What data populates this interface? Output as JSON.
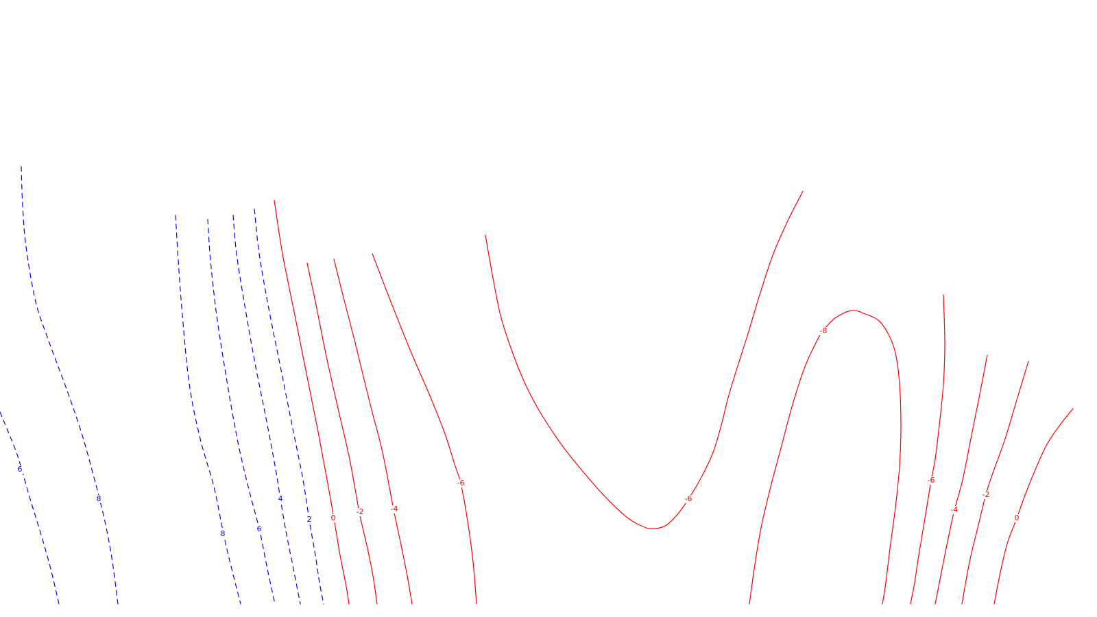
{
  "chart_data": {
    "type": "contour",
    "title": "",
    "xlabel": "",
    "ylabel": "",
    "grid": false,
    "legend": "none",
    "colors": {
      "positive": "#0000ff",
      "negative": "#ff0000",
      "background": "#ffffff"
    },
    "line_styles": {
      "positive": "dashed",
      "negative": "solid"
    },
    "contours": [
      {
        "id": "c-pos-6-far-left",
        "level": 6,
        "label": "6",
        "sign": "positive"
      },
      {
        "id": "c-pos-8-left",
        "level": 8,
        "label": "8",
        "sign": "positive"
      },
      {
        "id": "c-pos-8-mid",
        "level": 8,
        "label": "8",
        "sign": "positive"
      },
      {
        "id": "c-pos-6-mid",
        "level": 6,
        "label": "6",
        "sign": "positive"
      },
      {
        "id": "c-pos-4",
        "level": 4,
        "label": "4",
        "sign": "positive"
      },
      {
        "id": "c-pos-2",
        "level": 2,
        "label": "2",
        "sign": "positive"
      },
      {
        "id": "c-zero-left",
        "level": 0,
        "label": "0",
        "sign": "negative"
      },
      {
        "id": "c-neg-2-left",
        "level": -2,
        "label": "-2",
        "sign": "negative"
      },
      {
        "id": "c-neg-4-left",
        "level": -4,
        "label": "-4",
        "sign": "negative"
      },
      {
        "id": "c-neg-6-left",
        "level": -6,
        "label": "-6",
        "sign": "negative"
      },
      {
        "id": "c-neg-6-valley",
        "level": -6,
        "label": "-6",
        "sign": "negative"
      },
      {
        "id": "c-neg-8-loop",
        "level": -8,
        "label": "-8",
        "sign": "negative"
      },
      {
        "id": "c-neg-6-right",
        "level": -6,
        "label": "-6",
        "sign": "negative"
      },
      {
        "id": "c-neg-4-right",
        "level": -4,
        "label": "-4",
        "sign": "negative"
      },
      {
        "id": "c-neg-2-right",
        "level": -2,
        "label": "-2",
        "sign": "negative"
      },
      {
        "id": "c-zero-right",
        "level": 0,
        "label": "0",
        "sign": "negative"
      }
    ]
  }
}
